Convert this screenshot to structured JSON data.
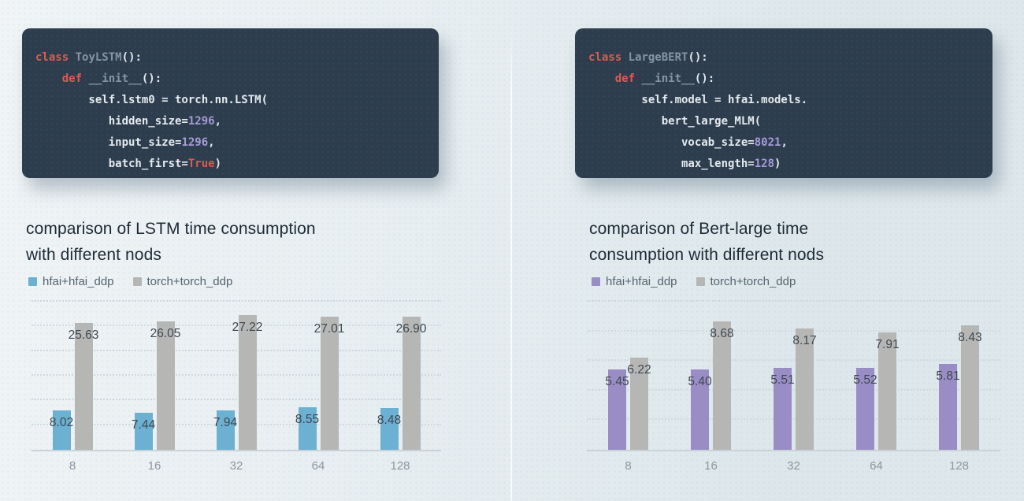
{
  "theme": {
    "background_start": "#f0f4f6",
    "background_end": "#dde7eb",
    "code_bg": "#2d3d4e",
    "tok_keyword": "#da5c50",
    "tok_identifier": "#8595a4",
    "tok_plain": "#e6ebee",
    "tok_number": "#a89ad8",
    "title_text": "#1c2a36",
    "legend_text": "#54646f",
    "value_label": "#3f4850",
    "axis_label": "#8c96a0",
    "baseline": "#c9d3d8",
    "gridline": "#cfdade",
    "divider": "#fafdfe"
  },
  "code_blocks": [
    {
      "lines": [
        [
          {
            "t": "class",
            "c": "kw"
          },
          {
            "t": " ToyLSTM",
            "c": "cls"
          },
          {
            "t": "():",
            "c": "plain"
          }
        ],
        [
          {
            "t": "    ",
            "c": "plain"
          },
          {
            "t": "def",
            "c": "kw"
          },
          {
            "t": " __init__",
            "c": "cls"
          },
          {
            "t": "():",
            "c": "plain"
          }
        ],
        [
          {
            "t": "        self.lstm0 = torch.nn.LSTM(",
            "c": "plain"
          }
        ],
        [
          {
            "t": "           hidden_size=",
            "c": "plain"
          },
          {
            "t": "1296",
            "c": "num"
          },
          {
            "t": ",",
            "c": "plain"
          }
        ],
        [
          {
            "t": "           input_size=",
            "c": "plain"
          },
          {
            "t": "1296",
            "c": "num"
          },
          {
            "t": ",",
            "c": "plain"
          }
        ],
        [
          {
            "t": "           batch_first=",
            "c": "plain"
          },
          {
            "t": "True",
            "c": "kw"
          },
          {
            "t": ")",
            "c": "plain"
          }
        ]
      ]
    },
    {
      "lines": [
        [
          {
            "t": "class",
            "c": "kw"
          },
          {
            "t": " LargeBERT",
            "c": "cls"
          },
          {
            "t": "():",
            "c": "plain"
          }
        ],
        [
          {
            "t": "    ",
            "c": "plain"
          },
          {
            "t": "def",
            "c": "kw"
          },
          {
            "t": " __init__",
            "c": "cls"
          },
          {
            "t": "():",
            "c": "plain"
          }
        ],
        [
          {
            "t": "        self.model = hfai.models.",
            "c": "plain"
          }
        ],
        [
          {
            "t": "           bert_large_MLM(",
            "c": "plain"
          }
        ],
        [
          {
            "t": "              vocab_size=",
            "c": "plain"
          },
          {
            "t": "8021",
            "c": "num"
          },
          {
            "t": ",",
            "c": "plain"
          }
        ],
        [
          {
            "t": "              max_length=",
            "c": "plain"
          },
          {
            "t": "128",
            "c": "num"
          },
          {
            "t": ")",
            "c": "plain"
          }
        ]
      ]
    }
  ],
  "chart_data": [
    {
      "type": "bar",
      "title": "comparison of LSTM time consumption\nwith different nods",
      "categories": [
        "8",
        "16",
        "32",
        "64",
        "128"
      ],
      "series": [
        {
          "name": "hfai+hfai_ddp",
          "color": "#6cb0d2",
          "values": [
            8.02,
            7.44,
            7.94,
            8.55,
            8.48
          ]
        },
        {
          "name": "torch+torch_ddp",
          "color": "#b6b6b5",
          "values": [
            25.63,
            26.05,
            27.22,
            27.01,
            26.9
          ]
        }
      ],
      "xlabel": "",
      "ylabel": "",
      "ylim": [
        0,
        30
      ],
      "grid_step": 5,
      "grid": "horizontal-dotted",
      "legend_position": "top-left",
      "value_label_decimals": 2
    },
    {
      "type": "bar",
      "title": "comparison of Bert-large time\nconsumption with different nods",
      "categories": [
        "8",
        "16",
        "32",
        "64",
        "128"
      ],
      "series": [
        {
          "name": "hfai+hfai_ddp",
          "color": "#9a8dc6",
          "values": [
            5.45,
            5.4,
            5.51,
            5.52,
            5.81
          ]
        },
        {
          "name": "torch+torch_ddp",
          "color": "#b6b6b5",
          "values": [
            6.22,
            8.68,
            8.17,
            7.91,
            8.43
          ]
        }
      ],
      "xlabel": "",
      "ylabel": "",
      "ylim": [
        0,
        10
      ],
      "grid_step": 2,
      "grid": "horizontal-dotted",
      "legend_position": "top-left",
      "value_label_decimals": 2
    }
  ]
}
